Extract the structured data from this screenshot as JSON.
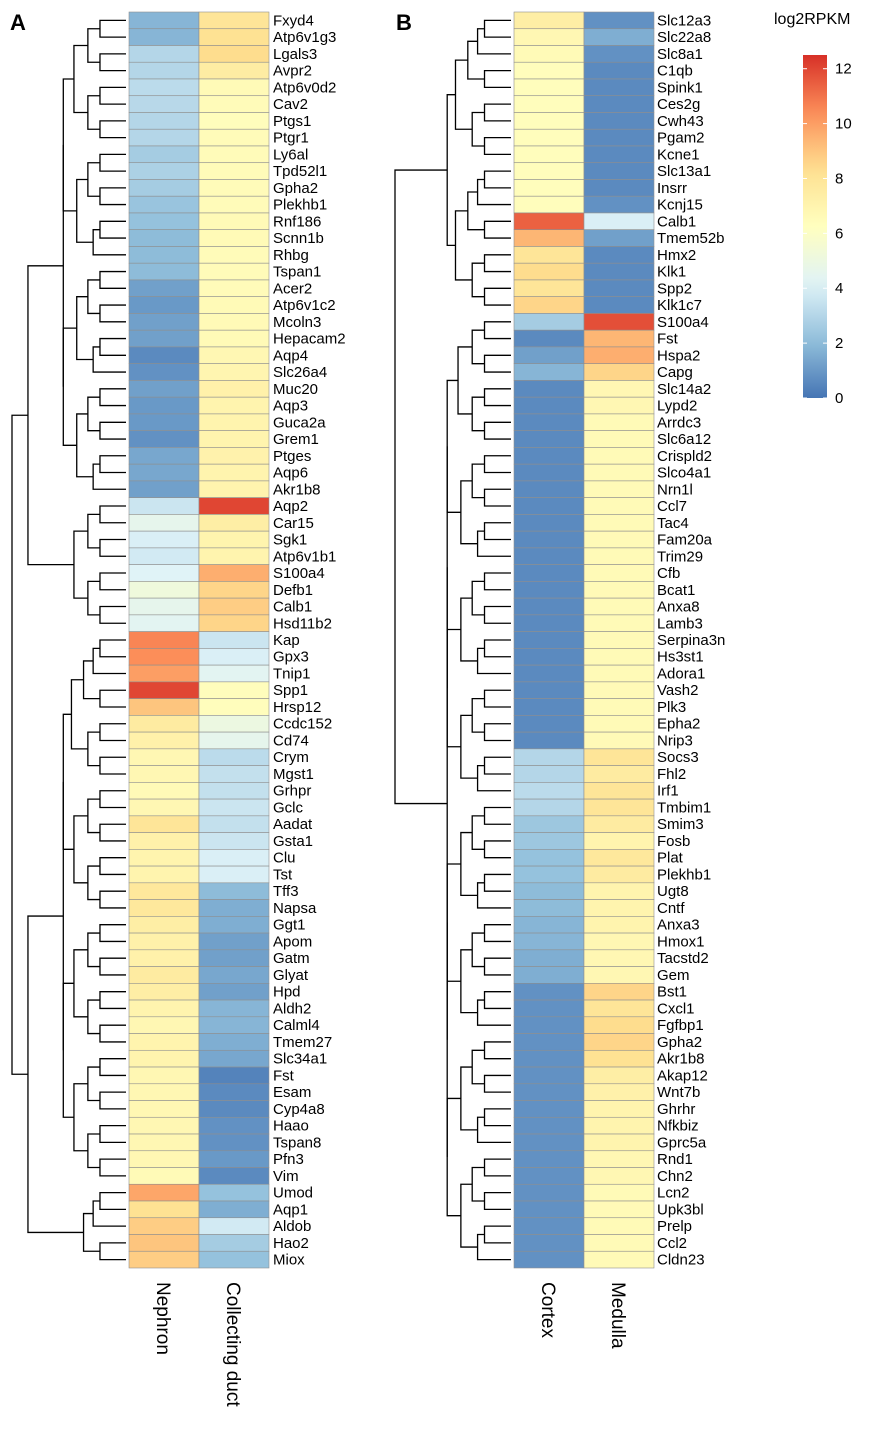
{
  "panels": [
    {
      "letter": "A",
      "columns": [
        "Nephron",
        "Collecting duct"
      ],
      "rows": [
        {
          "gene": "Fxyd4",
          "values": [
            1.8,
            8.0
          ]
        },
        {
          "gene": "Atp6v1g3",
          "values": [
            1.8,
            8.2
          ]
        },
        {
          "gene": "Lgals3",
          "values": [
            3.0,
            8.4
          ]
        },
        {
          "gene": "Avpr2",
          "values": [
            3.0,
            7.5
          ]
        },
        {
          "gene": "Atp6v0d2",
          "values": [
            3.2,
            6.6
          ]
        },
        {
          "gene": "Cav2",
          "values": [
            3.1,
            6.5
          ]
        },
        {
          "gene": "Ptgs1",
          "values": [
            3.0,
            6.4
          ]
        },
        {
          "gene": "Ptgr1",
          "values": [
            3.0,
            6.5
          ]
        },
        {
          "gene": "Ly6al",
          "values": [
            2.6,
            6.5
          ]
        },
        {
          "gene": "Tpd52l1",
          "values": [
            2.8,
            6.5
          ]
        },
        {
          "gene": "Gpha2",
          "values": [
            2.6,
            6.5
          ]
        },
        {
          "gene": "Plekhb1",
          "values": [
            2.3,
            6.5
          ]
        },
        {
          "gene": "Rnf186",
          "values": [
            2.2,
            6.6
          ]
        },
        {
          "gene": "Scnn1b",
          "values": [
            2.0,
            6.6
          ]
        },
        {
          "gene": "Rhbg",
          "values": [
            2.0,
            6.5
          ]
        },
        {
          "gene": "Tspan1",
          "values": [
            2.0,
            6.5
          ]
        },
        {
          "gene": "Acer2",
          "values": [
            1.2,
            6.5
          ]
        },
        {
          "gene": "Atp6v1c2",
          "values": [
            1.0,
            6.6
          ]
        },
        {
          "gene": "Mcoln3",
          "values": [
            1.2,
            6.6
          ]
        },
        {
          "gene": "Hepacam2",
          "values": [
            1.2,
            6.6
          ]
        },
        {
          "gene": "Aqp4",
          "values": [
            0.6,
            6.8
          ]
        },
        {
          "gene": "Slc26a4",
          "values": [
            0.8,
            6.9
          ]
        },
        {
          "gene": "Muc20",
          "values": [
            1.2,
            7.2
          ]
        },
        {
          "gene": "Aqp3",
          "values": [
            1.0,
            7.0
          ]
        },
        {
          "gene": "Guca2a",
          "values": [
            1.0,
            7.0
          ]
        },
        {
          "gene": "Grem1",
          "values": [
            0.8,
            7.0
          ]
        },
        {
          "gene": "Ptges",
          "values": [
            1.4,
            7.1
          ]
        },
        {
          "gene": "Aqp6",
          "values": [
            1.4,
            7.0
          ]
        },
        {
          "gene": "Akr1b8",
          "values": [
            1.2,
            7.0
          ]
        },
        {
          "gene": "Aqp2",
          "values": [
            3.6,
            12.0
          ]
        },
        {
          "gene": "Car15",
          "values": [
            4.6,
            7.4
          ]
        },
        {
          "gene": "Sgk1",
          "values": [
            4.0,
            7.0
          ]
        },
        {
          "gene": "Atp6v1b1",
          "values": [
            3.8,
            7.0
          ]
        },
        {
          "gene": "S100a4",
          "values": [
            4.2,
            9.6
          ]
        },
        {
          "gene": "Defb1",
          "values": [
            5.2,
            8.6
          ]
        },
        {
          "gene": "Calb1",
          "values": [
            4.6,
            8.8
          ]
        },
        {
          "gene": "Hsd11b2",
          "values": [
            4.4,
            8.6
          ]
        },
        {
          "gene": "Kap",
          "values": [
            10.6,
            3.6
          ]
        },
        {
          "gene": "Gpx3",
          "values": [
            10.4,
            4.0
          ]
        },
        {
          "gene": "Tnip1",
          "values": [
            10.0,
            4.4
          ]
        },
        {
          "gene": "Spp1",
          "values": [
            12.0,
            6.4
          ]
        },
        {
          "gene": "Hrsp12",
          "values": [
            9.0,
            6.4
          ]
        },
        {
          "gene": "Ccdc152",
          "values": [
            7.6,
            5.0
          ]
        },
        {
          "gene": "Cd74",
          "values": [
            7.2,
            4.6
          ]
        },
        {
          "gene": "Crym",
          "values": [
            6.8,
            3.2
          ]
        },
        {
          "gene": "Mgst1",
          "values": [
            6.8,
            3.4
          ]
        },
        {
          "gene": "Grhpr",
          "values": [
            6.6,
            3.4
          ]
        },
        {
          "gene": "Gclc",
          "values": [
            6.8,
            3.6
          ]
        },
        {
          "gene": "Aadat",
          "values": [
            8.0,
            3.4
          ]
        },
        {
          "gene": "Gsta1",
          "values": [
            7.2,
            3.6
          ]
        },
        {
          "gene": "Clu",
          "values": [
            7.0,
            4.0
          ]
        },
        {
          "gene": "Tst",
          "values": [
            7.0,
            4.0
          ]
        },
        {
          "gene": "Tff3",
          "values": [
            7.8,
            2.0
          ]
        },
        {
          "gene": "Napsa",
          "values": [
            7.8,
            1.6
          ]
        },
        {
          "gene": "Ggt1",
          "values": [
            7.4,
            1.6
          ]
        },
        {
          "gene": "Apom",
          "values": [
            7.2,
            1.2
          ]
        },
        {
          "gene": "Gatm",
          "values": [
            7.2,
            1.2
          ]
        },
        {
          "gene": "Glyat",
          "values": [
            7.6,
            1.4
          ]
        },
        {
          "gene": "Hpd",
          "values": [
            7.4,
            1.2
          ]
        },
        {
          "gene": "Aldh2",
          "values": [
            7.0,
            1.8
          ]
        },
        {
          "gene": "Calml4",
          "values": [
            6.8,
            1.8
          ]
        },
        {
          "gene": "Tmem27",
          "values": [
            7.0,
            1.6
          ]
        },
        {
          "gene": "Slc34a1",
          "values": [
            7.0,
            1.4
          ]
        },
        {
          "gene": "Fst",
          "values": [
            6.8,
            0.4
          ]
        },
        {
          "gene": "Esam",
          "values": [
            6.8,
            0.6
          ]
        },
        {
          "gene": "Cyp4a8",
          "values": [
            6.8,
            0.6
          ]
        },
        {
          "gene": "Haao",
          "values": [
            6.8,
            0.8
          ]
        },
        {
          "gene": "Tspan8",
          "values": [
            6.8,
            0.8
          ]
        },
        {
          "gene": "Pfn3",
          "values": [
            6.8,
            1.0
          ]
        },
        {
          "gene": "Vim",
          "values": [
            6.6,
            0.6
          ]
        },
        {
          "gene": "Umod",
          "values": [
            9.8,
            2.2
          ]
        },
        {
          "gene": "Aqp1",
          "values": [
            8.2,
            1.6
          ]
        },
        {
          "gene": "Aldob",
          "values": [
            8.8,
            3.8
          ]
        },
        {
          "gene": "Hao2",
          "values": [
            9.0,
            2.6
          ]
        },
        {
          "gene": "Miox",
          "values": [
            8.8,
            2.2
          ]
        }
      ]
    },
    {
      "letter": "B",
      "columns": [
        "Cortex",
        "Medulla"
      ],
      "rows": [
        {
          "gene": "Slc12a3",
          "values": [
            7.4,
            0.8
          ]
        },
        {
          "gene": "Slc22a8",
          "values": [
            6.8,
            1.6
          ]
        },
        {
          "gene": "Slc8a1",
          "values": [
            6.6,
            0.8
          ]
        },
        {
          "gene": "C1qb",
          "values": [
            6.4,
            0.6
          ]
        },
        {
          "gene": "Spink1",
          "values": [
            6.4,
            0.6
          ]
        },
        {
          "gene": "Ces2g",
          "values": [
            6.4,
            0.6
          ]
        },
        {
          "gene": "Cwh43",
          "values": [
            6.4,
            0.6
          ]
        },
        {
          "gene": "Pgam2",
          "values": [
            6.4,
            0.6
          ]
        },
        {
          "gene": "Kcne1",
          "values": [
            6.4,
            0.6
          ]
        },
        {
          "gene": "Slc13a1",
          "values": [
            6.4,
            0.6
          ]
        },
        {
          "gene": "Insrr",
          "values": [
            6.4,
            0.6
          ]
        },
        {
          "gene": "Kcnj15",
          "values": [
            6.4,
            0.8
          ]
        },
        {
          "gene": "Calb1",
          "values": [
            11.4,
            4.0
          ]
        },
        {
          "gene": "Tmem52b",
          "values": [
            9.4,
            1.2
          ]
        },
        {
          "gene": "Hmx2",
          "values": [
            8.0,
            0.6
          ]
        },
        {
          "gene": "Klk1",
          "values": [
            8.4,
            0.6
          ]
        },
        {
          "gene": "Spp2",
          "values": [
            8.0,
            0.6
          ]
        },
        {
          "gene": "Klk1c7",
          "values": [
            8.6,
            0.6
          ]
        },
        {
          "gene": "S100a4",
          "values": [
            2.6,
            11.8
          ]
        },
        {
          "gene": "Fst",
          "values": [
            0.6,
            9.4
          ]
        },
        {
          "gene": "Hspa2",
          "values": [
            1.2,
            9.6
          ]
        },
        {
          "gene": "Capg",
          "values": [
            1.8,
            8.6
          ]
        },
        {
          "gene": "Slc14a2",
          "values": [
            0.6,
            6.8
          ]
        },
        {
          "gene": "Lypd2",
          "values": [
            0.6,
            6.8
          ]
        },
        {
          "gene": "Arrdc3",
          "values": [
            0.6,
            6.6
          ]
        },
        {
          "gene": "Slc6a12",
          "values": [
            0.6,
            6.6
          ]
        },
        {
          "gene": "Crispld2",
          "values": [
            0.6,
            6.6
          ]
        },
        {
          "gene": "Slco4a1",
          "values": [
            0.6,
            6.6
          ]
        },
        {
          "gene": "Nrn1l",
          "values": [
            0.6,
            6.6
          ]
        },
        {
          "gene": "Ccl7",
          "values": [
            0.6,
            6.6
          ]
        },
        {
          "gene": "Tac4",
          "values": [
            0.6,
            6.6
          ]
        },
        {
          "gene": "Fam20a",
          "values": [
            0.6,
            6.6
          ]
        },
        {
          "gene": "Trim29",
          "values": [
            0.6,
            6.6
          ]
        },
        {
          "gene": "Cfb",
          "values": [
            0.6,
            6.6
          ]
        },
        {
          "gene": "Bcat1",
          "values": [
            0.6,
            6.6
          ]
        },
        {
          "gene": "Anxa8",
          "values": [
            0.6,
            6.6
          ]
        },
        {
          "gene": "Lamb3",
          "values": [
            0.6,
            6.6
          ]
        },
        {
          "gene": "Serpina3n",
          "values": [
            0.6,
            6.6
          ]
        },
        {
          "gene": "Hs3st1",
          "values": [
            0.6,
            6.6
          ]
        },
        {
          "gene": "Adora1",
          "values": [
            0.6,
            6.6
          ]
        },
        {
          "gene": "Vash2",
          "values": [
            0.6,
            6.6
          ]
        },
        {
          "gene": "Plk3",
          "values": [
            0.6,
            6.6
          ]
        },
        {
          "gene": "Epha2",
          "values": [
            0.6,
            6.6
          ]
        },
        {
          "gene": "Nrip3",
          "values": [
            0.6,
            6.6
          ]
        },
        {
          "gene": "Socs3",
          "values": [
            3.0,
            8.0
          ]
        },
        {
          "gene": "Fhl2",
          "values": [
            3.0,
            7.6
          ]
        },
        {
          "gene": "Irf1",
          "values": [
            3.2,
            8.0
          ]
        },
        {
          "gene": "Tmbim1",
          "values": [
            3.0,
            8.0
          ]
        },
        {
          "gene": "Smim3",
          "values": [
            2.4,
            7.6
          ]
        },
        {
          "gene": "Fosb",
          "values": [
            2.4,
            7.0
          ]
        },
        {
          "gene": "Plat",
          "values": [
            2.2,
            7.8
          ]
        },
        {
          "gene": "Plekhb1",
          "values": [
            2.2,
            7.6
          ]
        },
        {
          "gene": "Ugt8",
          "values": [
            2.0,
            7.0
          ]
        },
        {
          "gene": "Cntf",
          "values": [
            2.0,
            7.0
          ]
        },
        {
          "gene": "Anxa3",
          "values": [
            1.8,
            7.0
          ]
        },
        {
          "gene": "Hmox1",
          "values": [
            1.8,
            6.8
          ]
        },
        {
          "gene": "Tacstd2",
          "values": [
            1.6,
            6.8
          ]
        },
        {
          "gene": "Gem",
          "values": [
            1.6,
            6.8
          ]
        },
        {
          "gene": "Bst1",
          "values": [
            0.8,
            8.6
          ]
        },
        {
          "gene": "Cxcl1",
          "values": [
            0.8,
            8.0
          ]
        },
        {
          "gene": "Fgfbp1",
          "values": [
            0.8,
            8.4
          ]
        },
        {
          "gene": "Gpha2",
          "values": [
            0.8,
            8.6
          ]
        },
        {
          "gene": "Akr1b8",
          "values": [
            0.8,
            8.2
          ]
        },
        {
          "gene": "Akap12",
          "values": [
            0.8,
            7.4
          ]
        },
        {
          "gene": "Wnt7b",
          "values": [
            0.8,
            7.2
          ]
        },
        {
          "gene": "Ghrhr",
          "values": [
            0.8,
            7.0
          ]
        },
        {
          "gene": "Nfkbiz",
          "values": [
            0.8,
            7.0
          ]
        },
        {
          "gene": "Gprc5a",
          "values": [
            0.8,
            7.0
          ]
        },
        {
          "gene": "Rnd1",
          "values": [
            0.8,
            6.8
          ]
        },
        {
          "gene": "Chn2",
          "values": [
            0.8,
            6.8
          ]
        },
        {
          "gene": "Lcn2",
          "values": [
            0.8,
            6.6
          ]
        },
        {
          "gene": "Upk3bl",
          "values": [
            0.8,
            6.6
          ]
        },
        {
          "gene": "Prelp",
          "values": [
            0.8,
            6.6
          ]
        },
        {
          "gene": "Ccl2",
          "values": [
            0.8,
            6.6
          ]
        },
        {
          "gene": "Cldn23",
          "values": [
            0.8,
            6.6
          ]
        }
      ]
    }
  ],
  "chart_data": {
    "type": "heatmap",
    "legend_title": "log2RPKM",
    "legend_ticks": [
      12,
      10,
      8,
      6,
      4,
      2,
      0
    ],
    "value_range": [
      0,
      12.5
    ],
    "color_stops": [
      "#4575b4",
      "#91bfdb",
      "#e0f3f8",
      "#ffffbf",
      "#fee090",
      "#fc8d59",
      "#d73027"
    ]
  }
}
